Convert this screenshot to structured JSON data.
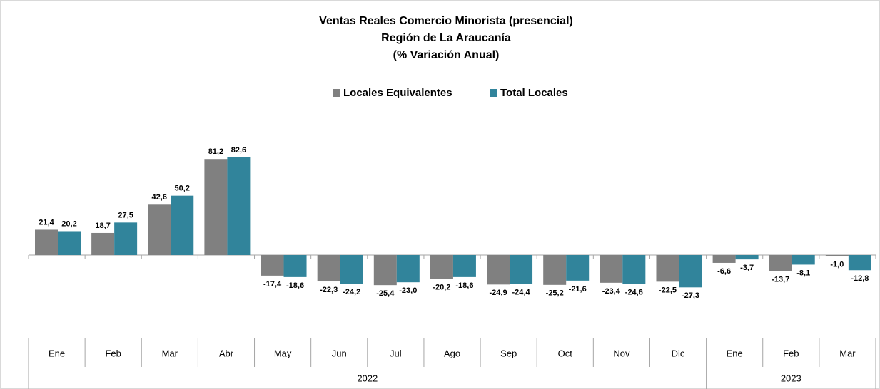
{
  "chart_data": {
    "type": "bar",
    "title": [
      "Ventas Reales Comercio Minorista (presencial)",
      "Región de La Araucanía",
      "(% Variación Anual)"
    ],
    "categories": [
      "Ene",
      "Feb",
      "Mar",
      "Abr",
      "May",
      "Jun",
      "Jul",
      "Ago",
      "Sep",
      "Oct",
      "Nov",
      "Dic",
      "Ene",
      "Feb",
      "Mar"
    ],
    "years": [
      "2022",
      "2022",
      "2022",
      "2022",
      "2022",
      "2022",
      "2022",
      "2022",
      "2022",
      "2022",
      "2022",
      "2022",
      "2023",
      "2023",
      "2023"
    ],
    "series": [
      {
        "name": "Locales Equivalentes",
        "color": "#808080",
        "values": [
          21.4,
          18.7,
          42.6,
          81.2,
          -17.4,
          -22.3,
          -25.4,
          -20.2,
          -24.9,
          -25.2,
          -23.4,
          -22.5,
          -6.6,
          -13.7,
          -1.0
        ],
        "value_labels": [
          "21,4",
          "18,7",
          "42,6",
          "81,2",
          "-17,4",
          "-22,3",
          "-25,4",
          "-20,2",
          "-24,9",
          "-25,2",
          "-23,4",
          "-22,5",
          "-6,6",
          "-13,7",
          "-1,0"
        ]
      },
      {
        "name": "Total Locales",
        "color": "#31849b",
        "values": [
          20.2,
          27.5,
          50.2,
          82.6,
          -18.6,
          -24.2,
          -23.0,
          -18.6,
          -24.4,
          -21.6,
          -24.6,
          -27.3,
          -3.7,
          -8.1,
          -12.8
        ],
        "value_labels": [
          "20,2",
          "27,5",
          "50,2",
          "82,6",
          "-18,6",
          "-24,2",
          "-23,0",
          "-18,6",
          "-24,4",
          "-21,6",
          "-24,6",
          "-27,3",
          "-3,7",
          "-8,1",
          "-12,8"
        ]
      }
    ],
    "legend": "top"
  }
}
